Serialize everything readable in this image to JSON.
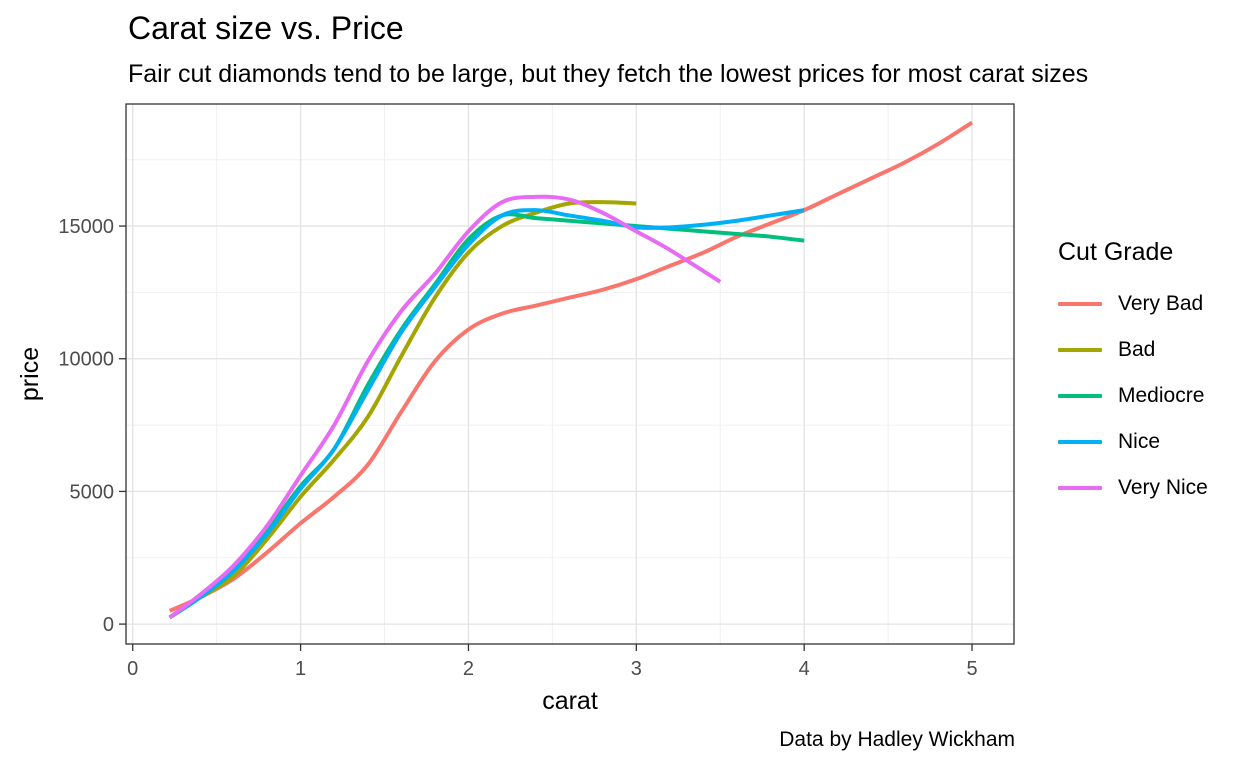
{
  "chart_data": {
    "type": "line",
    "title": "Carat size vs. Price",
    "subtitle": "Fair cut diamonds tend to be large, but they fetch the lowest prices for most carat sizes",
    "caption": "Data by Hadley Wickham",
    "xlabel": "carat",
    "ylabel": "price",
    "xlim": [
      -0.04,
      5.25
    ],
    "ylim": [
      -750,
      19600
    ],
    "x_ticks": [
      0,
      1,
      2,
      3,
      4,
      5
    ],
    "y_ticks": [
      0,
      5000,
      10000,
      15000
    ],
    "grid": true,
    "legend_title": "Cut Grade",
    "legend_position": "right",
    "series": [
      {
        "name": "Very Bad",
        "color": "#F8766D",
        "x": [
          0.22,
          0.4,
          0.6,
          0.8,
          1.0,
          1.2,
          1.4,
          1.6,
          1.8,
          2.0,
          2.2,
          2.4,
          2.6,
          2.8,
          3.0,
          3.2,
          3.4,
          3.6,
          3.8,
          4.0,
          4.2,
          4.4,
          4.6,
          4.8,
          5.0
        ],
        "y": [
          500,
          1000,
          1700,
          2700,
          3800,
          4800,
          6000,
          8000,
          9900,
          11100,
          11700,
          12000,
          12300,
          12600,
          13000,
          13500,
          14000,
          14600,
          15100,
          15600,
          16200,
          16800,
          17400,
          18100,
          18900
        ]
      },
      {
        "name": "Bad",
        "color": "#A3A500",
        "x": [
          0.22,
          0.4,
          0.6,
          0.8,
          1.0,
          1.2,
          1.4,
          1.6,
          1.8,
          2.0,
          2.2,
          2.4,
          2.6,
          2.8,
          3.0
        ],
        "y": [
          250,
          1000,
          1800,
          3200,
          4800,
          6200,
          7800,
          10100,
          12300,
          14000,
          15000,
          15500,
          15850,
          15900,
          15850
        ]
      },
      {
        "name": "Mediocre",
        "color": "#00BF7D",
        "x": [
          0.22,
          0.4,
          0.6,
          0.8,
          1.0,
          1.2,
          1.4,
          1.6,
          1.8,
          2.0,
          2.2,
          2.4,
          2.6,
          2.8,
          3.0,
          3.2,
          3.4,
          3.6,
          3.8,
          4.0
        ],
        "y": [
          250,
          1000,
          2000,
          3500,
          5200,
          6600,
          9000,
          11100,
          12800,
          14500,
          15400,
          15300,
          15200,
          15100,
          15000,
          14900,
          14800,
          14700,
          14600,
          14450
        ]
      },
      {
        "name": "Nice",
        "color": "#00B0F6",
        "x": [
          0.22,
          0.4,
          0.6,
          0.8,
          1.0,
          1.2,
          1.4,
          1.6,
          1.8,
          2.0,
          2.2,
          2.4,
          2.6,
          2.8,
          3.0,
          3.2,
          3.4,
          3.6,
          3.8,
          4.0
        ],
        "y": [
          250,
          1000,
          2000,
          3400,
          5100,
          6600,
          8800,
          11000,
          12700,
          14300,
          15400,
          15600,
          15400,
          15200,
          14950,
          14950,
          15050,
          15200,
          15400,
          15600
        ]
      },
      {
        "name": "Very Nice",
        "color": "#E76BF3",
        "x": [
          0.22,
          0.4,
          0.6,
          0.8,
          1.0,
          1.2,
          1.4,
          1.6,
          1.8,
          2.0,
          2.2,
          2.4,
          2.6,
          2.8,
          3.0,
          3.2,
          3.5
        ],
        "y": [
          250,
          1100,
          2200,
          3700,
          5600,
          7500,
          9900,
          11800,
          13200,
          14800,
          15900,
          16100,
          16000,
          15500,
          14800,
          14100,
          12900
        ]
      }
    ]
  }
}
